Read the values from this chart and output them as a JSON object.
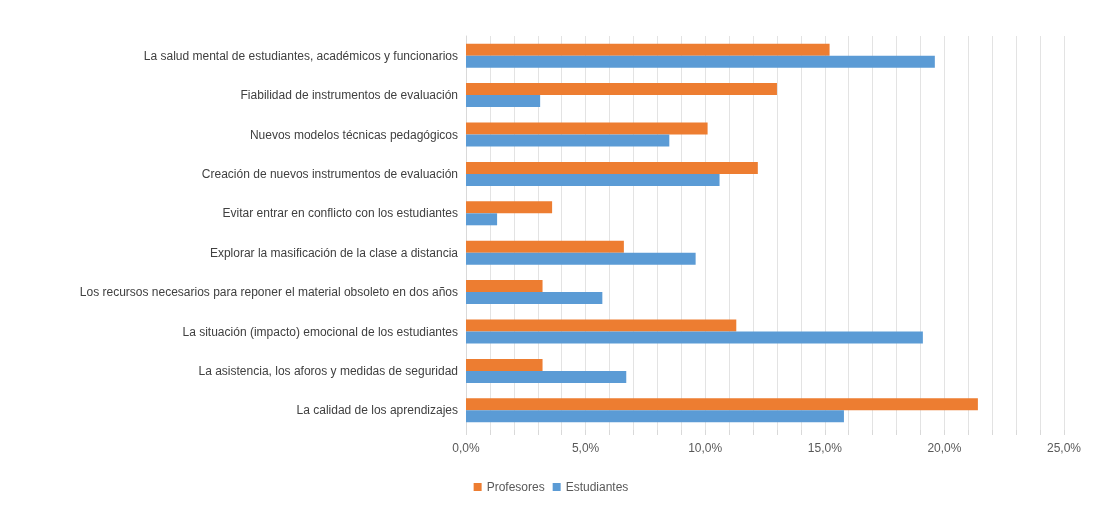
{
  "chart_data": {
    "type": "bar",
    "orientation": "horizontal",
    "categories": [
      "La salud mental de estudiantes, académicos y funcionarios",
      "Fiabilidad de instrumentos de evaluación",
      "Nuevos modelos técnicas pedagógicos",
      "Creación de nuevos instrumentos de evaluación",
      "Evitar entrar en conflicto con los estudiantes",
      "Explorar la masificación de la clase a distancia",
      "Los recursos necesarios para reponer el material obsoleto en dos años",
      "La situación (impacto) emocional de los estudiantes",
      "La asistencia, los aforos y medidas de seguridad",
      "La calidad de los aprendizajes"
    ],
    "series": [
      {
        "name": "Profesores",
        "color": "#ed7d31",
        "values": [
          15.2,
          13.0,
          10.1,
          12.2,
          3.6,
          6.6,
          3.2,
          11.3,
          3.2,
          21.4
        ]
      },
      {
        "name": "Estudiantes",
        "color": "#5b9bd5",
        "values": [
          19.6,
          3.1,
          8.5,
          10.6,
          1.3,
          9.6,
          5.7,
          19.1,
          6.7,
          15.8
        ]
      }
    ],
    "xlim": [
      0,
      25
    ],
    "xticks": [
      {
        "value": 0,
        "label": "0,0%"
      },
      {
        "value": 1,
        "label": null
      },
      {
        "value": 2,
        "label": null
      },
      {
        "value": 3,
        "label": null
      },
      {
        "value": 4,
        "label": null
      },
      {
        "value": 5,
        "label": "5,0%"
      },
      {
        "value": 6,
        "label": null
      },
      {
        "value": 7,
        "label": null
      },
      {
        "value": 8,
        "label": null
      },
      {
        "value": 9,
        "label": null
      },
      {
        "value": 10,
        "label": "10,0%"
      },
      {
        "value": 11,
        "label": null
      },
      {
        "value": 12,
        "label": null
      },
      {
        "value": 13,
        "label": null
      },
      {
        "value": 14,
        "label": null
      },
      {
        "value": 15,
        "label": "15,0%"
      },
      {
        "value": 16,
        "label": null
      },
      {
        "value": 17,
        "label": null
      },
      {
        "value": 18,
        "label": null
      },
      {
        "value": 19,
        "label": null
      },
      {
        "value": 20,
        "label": "20,0%"
      },
      {
        "value": 21,
        "label": null
      },
      {
        "value": 22,
        "label": null
      },
      {
        "value": 23,
        "label": null
      },
      {
        "value": 24,
        "label": null
      },
      {
        "value": 25,
        "label": "25,0%"
      }
    ],
    "grid": "x",
    "legend": "bottom"
  }
}
